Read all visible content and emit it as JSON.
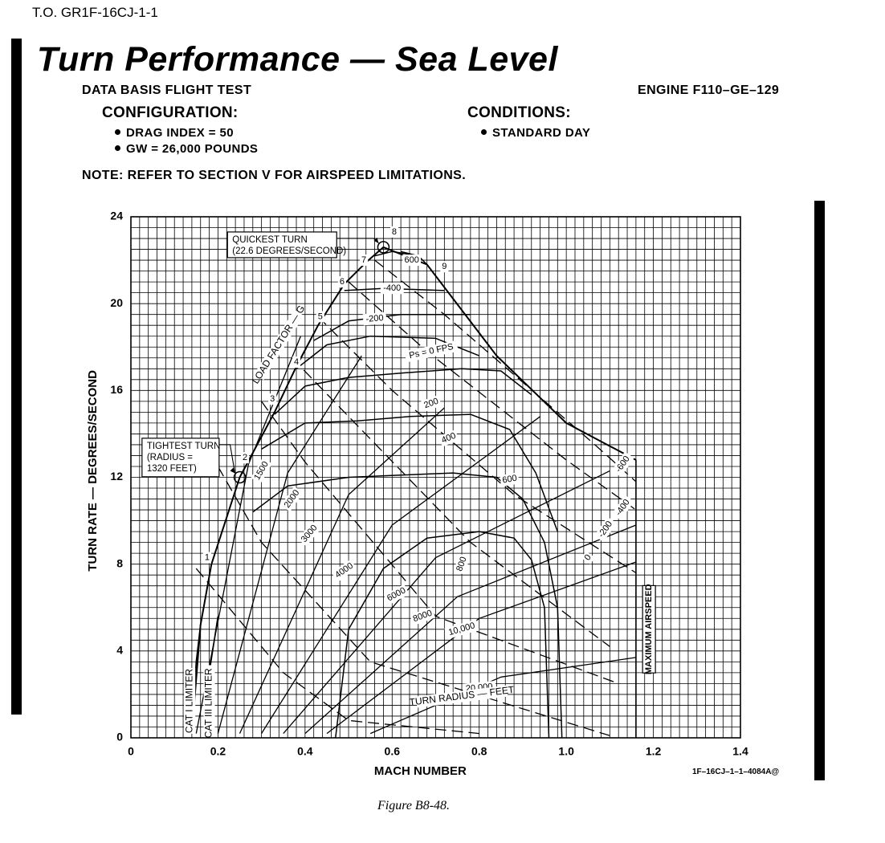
{
  "header": {
    "doc_id": "T.O. GR1F-16CJ-1-1",
    "title": "Turn Performance — Sea Level",
    "data_basis": "DATA BASIS FLIGHT TEST",
    "engine": "ENGINE F110–GE–129",
    "configuration_label": "CONFIGURATION:",
    "configuration_items": [
      "DRAG INDEX = 50",
      "GW = 26,000 POUNDS"
    ],
    "conditions_label": "CONDITIONS:",
    "conditions_items": [
      "STANDARD DAY"
    ],
    "note": "NOTE:  REFER TO SECTION V FOR AIRSPEED LIMITATIONS."
  },
  "figure": {
    "code": "1F–16CJ–1–1–4084A@",
    "caption": "Figure B8-48."
  },
  "colors": {
    "ink": "#000000",
    "paper": "#ffffff"
  },
  "chart_data": {
    "type": "line",
    "xlabel": "MACH NUMBER",
    "ylabel": "TURN RATE — DEGREES/SECOND",
    "xlim": [
      0,
      1.4
    ],
    "ylim": [
      0,
      24
    ],
    "x_ticks": [
      "0",
      "0.2",
      "0.4",
      "0.6",
      "0.8",
      "1.0",
      "1.2",
      "1.4"
    ],
    "y_ticks": [
      "0",
      "4",
      "8",
      "12",
      "16",
      "20",
      "24"
    ],
    "grid": true,
    "annotations": [
      {
        "text": [
          "QUICKEST TURN",
          "(22.6 DEGREES/SECOND)"
        ],
        "point": [
          0.58,
          22.6
        ]
      },
      {
        "text": [
          "TIGHTEST TURN",
          "(RADIUS =",
          "1320 FEET)"
        ],
        "point": [
          0.25,
          12.0
        ]
      }
    ],
    "limiter_labels": [
      "CAT I LIMITER",
      "CAT III LIMITER"
    ],
    "max_airspeed_label": "MAXIMUM AIRSPEED",
    "load_factor_label": "LOAD FACTOR — G",
    "turn_radius_label": "TURN RADIUS — FEET",
    "load_factor": [
      {
        "g": "1",
        "points": [
          [
            0.14,
            0.2
          ],
          [
            0.16,
            5.2
          ],
          [
            0.185,
            8.0
          ]
        ]
      },
      {
        "g": "2",
        "points": [
          [
            0.185,
            8.0
          ],
          [
            0.25,
            12.0
          ]
        ]
      },
      {
        "g": "3",
        "points": [
          [
            0.25,
            12.0
          ],
          [
            0.33,
            15.0
          ]
        ]
      },
      {
        "g": "4",
        "points": [
          [
            0.33,
            15.0
          ],
          [
            0.38,
            17.1
          ]
        ]
      },
      {
        "g": "5",
        "points": [
          [
            0.38,
            17.1
          ],
          [
            0.43,
            19.0
          ]
        ]
      },
      {
        "g": "6",
        "points": [
          [
            0.43,
            19.0
          ],
          [
            0.49,
            20.9
          ]
        ]
      },
      {
        "g": "7",
        "points": [
          [
            0.49,
            20.9
          ],
          [
            0.54,
            21.9
          ]
        ]
      },
      {
        "g": "8",
        "points": [
          [
            0.54,
            21.9
          ],
          [
            0.58,
            22.6
          ]
        ]
      },
      {
        "g": "9",
        "points": [
          [
            0.58,
            22.6
          ],
          [
            0.68,
            21.8
          ],
          [
            0.84,
            17.6
          ],
          [
            1.0,
            14.5
          ],
          [
            1.16,
            12.8
          ]
        ]
      }
    ],
    "ps_fps": [
      {
        "label": "600",
        "points": [
          [
            0.62,
            22.4
          ],
          [
            0.66,
            22.2
          ]
        ]
      },
      {
        "label": "-600",
        "points": [
          [
            0.56,
            22.2
          ],
          [
            0.6,
            22.4
          ],
          [
            0.66,
            22.2
          ],
          [
            0.68,
            21.8
          ]
        ]
      },
      {
        "label": "-400",
        "points": [
          [
            0.49,
            20.6
          ],
          [
            0.58,
            20.7
          ],
          [
            0.72,
            20.6
          ]
        ]
      },
      {
        "label": "-200",
        "points": [
          [
            0.42,
            18.3
          ],
          [
            0.5,
            19.2
          ],
          [
            0.62,
            19.5
          ],
          [
            0.78,
            19.5
          ]
        ]
      },
      {
        "label": "0",
        "points": [
          [
            0.38,
            17.0
          ],
          [
            0.45,
            18.1
          ],
          [
            0.55,
            18.5
          ],
          [
            0.7,
            18.4
          ],
          [
            0.8,
            17.6
          ]
        ]
      },
      {
        "label": "200",
        "points": [
          [
            0.33,
            14.9
          ],
          [
            0.4,
            16.2
          ],
          [
            0.5,
            16.6
          ],
          [
            0.62,
            16.8
          ],
          [
            0.76,
            17.0
          ],
          [
            0.85,
            16.9
          ],
          [
            0.92,
            15.8
          ]
        ]
      },
      {
        "label": "400",
        "points": [
          [
            0.3,
            13.3
          ],
          [
            0.4,
            14.5
          ],
          [
            0.52,
            14.6
          ],
          [
            0.64,
            14.8
          ],
          [
            0.78,
            14.9
          ],
          [
            0.87,
            14.2
          ],
          [
            0.93,
            12.2
          ],
          [
            0.98,
            9.5
          ]
        ]
      },
      {
        "label": "600",
        "points": [
          [
            0.28,
            10.4
          ],
          [
            0.36,
            11.6
          ],
          [
            0.5,
            12.0
          ],
          [
            0.62,
            12.1
          ],
          [
            0.74,
            12.2
          ],
          [
            0.84,
            12.0
          ],
          [
            0.9,
            11.0
          ],
          [
            0.95,
            9.0
          ],
          [
            0.98,
            6.0
          ],
          [
            0.99,
            0
          ]
        ]
      },
      {
        "label": "800",
        "points": [
          [
            0.47,
            0
          ],
          [
            0.5,
            5.0
          ],
          [
            0.58,
            7.8
          ],
          [
            0.68,
            9.2
          ],
          [
            0.8,
            9.5
          ],
          [
            0.88,
            9.2
          ],
          [
            0.92,
            8.2
          ],
          [
            0.95,
            6.0
          ],
          [
            0.96,
            0
          ]
        ]
      }
    ],
    "turn_radius_ft": [
      {
        "label": "1500",
        "points": [
          [
            0.15,
            0.2
          ],
          [
            0.27,
            12.6
          ],
          [
            0.39,
            18.5
          ]
        ]
      },
      {
        "label": "2000",
        "points": [
          [
            0.2,
            0.2
          ],
          [
            0.36,
            12.2
          ],
          [
            0.53,
            17.6
          ]
        ]
      },
      {
        "label": "3000",
        "points": [
          [
            0.25,
            0.2
          ],
          [
            0.5,
            11.2
          ],
          [
            0.72,
            15.2
          ]
        ]
      },
      {
        "label": "4000",
        "points": [
          [
            0.3,
            0.2
          ],
          [
            0.6,
            9.8
          ],
          [
            0.94,
            14.8
          ]
        ]
      },
      {
        "label": "6000",
        "points": [
          [
            0.35,
            0.2
          ],
          [
            0.7,
            8.3
          ],
          [
            1.1,
            12.3
          ]
        ]
      },
      {
        "label": "8000",
        "points": [
          [
            0.4,
            0.2
          ],
          [
            0.75,
            6.5
          ],
          [
            1.16,
            9.8
          ]
        ]
      },
      {
        "label": "10,000",
        "points": [
          [
            0.45,
            0.2
          ],
          [
            0.8,
            5.5
          ],
          [
            1.16,
            8.1
          ]
        ]
      },
      {
        "label": "20,000",
        "points": [
          [
            0.55,
            0.2
          ],
          [
            0.85,
            2.8
          ],
          [
            1.16,
            3.7
          ]
        ]
      }
    ],
    "dashed_lines": [
      [
        [
          0.15,
          7.8
        ],
        [
          0.35,
          3.0
        ],
        [
          0.5,
          0.8
        ],
        [
          0.8,
          0.2
        ]
      ],
      [
        [
          0.2,
          12.5
        ],
        [
          0.3,
          9.0
        ],
        [
          0.55,
          3.5
        ],
        [
          1.1,
          0.1
        ]
      ],
      [
        [
          0.3,
          15.5
        ],
        [
          0.4,
          12.7
        ],
        [
          0.7,
          5.6
        ],
        [
          1.12,
          2.5
        ]
      ],
      [
        [
          0.37,
          17.5
        ],
        [
          0.5,
          14.8
        ],
        [
          0.78,
          9.0
        ],
        [
          1.1,
          4.2
        ]
      ],
      [
        [
          0.43,
          19.4
        ],
        [
          0.6,
          16.0
        ],
        [
          0.88,
          11.2
        ],
        [
          1.16,
          7.6
        ]
      ],
      [
        [
          0.5,
          21.0
        ],
        [
          0.68,
          17.8
        ],
        [
          1.0,
          12.8
        ],
        [
          1.16,
          10.5
        ]
      ],
      [
        [
          0.56,
          22.0
        ],
        [
          0.72,
          19.5
        ],
        [
          1.06,
          13.6
        ],
        [
          1.16,
          11.8
        ]
      ]
    ],
    "limits": [
      {
        "name": "CAT I",
        "points": [
          [
            0.14,
            0.2
          ],
          [
            0.15,
            3.5
          ],
          [
            0.16,
            5.2
          ]
        ]
      },
      {
        "name": "CAT III",
        "points": [
          [
            0.17,
            0.2
          ],
          [
            0.18,
            3.0
          ],
          [
            0.2,
            5.6
          ]
        ]
      },
      {
        "name": "MAXIMUM AIRSPEED",
        "points": [
          [
            1.16,
            12.8
          ],
          [
            1.16,
            0
          ]
        ]
      }
    ],
    "series_labels": [
      {
        "text": "600",
        "at": [
          0.645,
          22.0
        ],
        "rot": 0
      },
      {
        "text": "-400",
        "at": [
          0.6,
          20.7
        ],
        "rot": 0
      },
      {
        "text": "-200",
        "at": [
          0.56,
          19.3
        ],
        "rot": -5
      },
      {
        "text": "Ps = 0 FPS",
        "at": [
          0.69,
          17.8
        ],
        "rot": -12
      },
      {
        "text": "200",
        "at": [
          0.69,
          15.4
        ],
        "rot": -20
      },
      {
        "text": "400",
        "at": [
          0.73,
          13.8
        ],
        "rot": -22
      },
      {
        "text": "600",
        "at": [
          0.87,
          11.9
        ],
        "rot": -10
      },
      {
        "text": "800",
        "at": [
          0.76,
          8.0
        ],
        "rot": -70
      },
      {
        "text": "1500",
        "at": [
          0.3,
          12.3
        ],
        "rot": -60
      },
      {
        "text": "2000",
        "at": [
          0.37,
          11.0
        ],
        "rot": -55
      },
      {
        "text": "3000",
        "at": [
          0.41,
          9.4
        ],
        "rot": -50
      },
      {
        "text": "4000",
        "at": [
          0.49,
          7.7
        ],
        "rot": -35
      },
      {
        "text": "6000",
        "at": [
          0.61,
          6.6
        ],
        "rot": -28
      },
      {
        "text": "8000",
        "at": [
          0.67,
          5.6
        ],
        "rot": -20
      },
      {
        "text": "10,000",
        "at": [
          0.76,
          5.0
        ],
        "rot": -16
      },
      {
        "text": "20,000",
        "at": [
          0.8,
          2.3
        ],
        "rot": -5
      },
      {
        "text": "-600",
        "at": [
          1.13,
          12.6
        ],
        "rot": -55
      },
      {
        "text": "-400",
        "at": [
          1.13,
          10.6
        ],
        "rot": -55
      },
      {
        "text": "-200",
        "at": [
          1.09,
          9.6
        ],
        "rot": -55
      },
      {
        "text": "0",
        "at": [
          1.05,
          8.3
        ],
        "rot": -55
      },
      {
        "text": "1",
        "at": [
          0.175,
          8.3
        ],
        "rot": 0
      },
      {
        "text": "2",
        "at": [
          0.262,
          12.9
        ],
        "rot": 0
      },
      {
        "text": "3",
        "at": [
          0.325,
          15.6
        ],
        "rot": 0
      },
      {
        "text": "4",
        "at": [
          0.38,
          17.3
        ],
        "rot": 0
      },
      {
        "text": "5",
        "at": [
          0.435,
          19.4
        ],
        "rot": 0
      },
      {
        "text": "6",
        "at": [
          0.485,
          21.0
        ],
        "rot": 0
      },
      {
        "text": "7",
        "at": [
          0.535,
          22.0
        ],
        "rot": 0
      },
      {
        "text": "8",
        "at": [
          0.605,
          23.3
        ],
        "rot": 0
      },
      {
        "text": "9",
        "at": [
          0.72,
          21.7
        ],
        "rot": 0
      }
    ]
  }
}
